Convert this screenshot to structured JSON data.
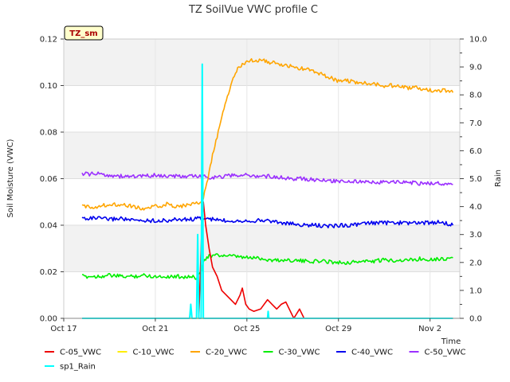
{
  "chart_data": {
    "type": "line",
    "title": "TZ SoilVue VWC profile C",
    "badge": "TZ_sm",
    "xlabel": "Time",
    "ylabel_left": "Soil Moisture (VWC)",
    "ylabel_right": "Rain",
    "xlim": [
      0,
      17.3
    ],
    "x_ticks": [
      {
        "x": 0,
        "label": "Oct 17"
      },
      {
        "x": 4,
        "label": "Oct 21"
      },
      {
        "x": 8,
        "label": "Oct 25"
      },
      {
        "x": 12,
        "label": "Oct 29"
      },
      {
        "x": 16,
        "label": "Nov 2"
      }
    ],
    "ylim_left": [
      0,
      0.12
    ],
    "y_ticks_left": [
      "0.00",
      "0.02",
      "0.04",
      "0.06",
      "0.08",
      "0.10",
      "0.12"
    ],
    "ylim_right": [
      0,
      10
    ],
    "y_ticks_right": [
      "0.0",
      "1.0",
      "2.0",
      "3.0",
      "4.0",
      "5.0",
      "6.0",
      "7.0",
      "8.0",
      "9.0",
      "10.0"
    ],
    "grid": true,
    "legend_position": "bottom",
    "series": [
      {
        "name": "C-05_VWC",
        "color": "#ee0000",
        "axis": "left",
        "points": [
          [
            5.9,
            0.0
          ],
          [
            6.0,
            0.03
          ],
          [
            6.05,
            0.045
          ],
          [
            6.1,
            0.05
          ],
          [
            6.2,
            0.04
          ],
          [
            6.35,
            0.03
          ],
          [
            6.5,
            0.022
          ],
          [
            6.7,
            0.018
          ],
          [
            6.9,
            0.012
          ],
          [
            7.1,
            0.01
          ],
          [
            7.3,
            0.008
          ],
          [
            7.5,
            0.006
          ],
          [
            7.7,
            0.01
          ],
          [
            7.8,
            0.013
          ],
          [
            7.95,
            0.006
          ],
          [
            8.1,
            0.004
          ],
          [
            8.3,
            0.003
          ],
          [
            8.6,
            0.004
          ],
          [
            8.9,
            0.008
          ],
          [
            9.1,
            0.006
          ],
          [
            9.3,
            0.004
          ],
          [
            9.5,
            0.006
          ],
          [
            9.7,
            0.007
          ],
          [
            9.85,
            0.004
          ],
          [
            10.05,
            0.0
          ],
          [
            10.3,
            0.004
          ],
          [
            10.5,
            0.0
          ],
          [
            11.0,
            0.0
          ],
          [
            12.0,
            0.0
          ],
          [
            13.0,
            0.0
          ],
          [
            14.0,
            0.0
          ],
          [
            15.0,
            0.0
          ],
          [
            16.0,
            0.0
          ],
          [
            17.0,
            0.0
          ]
        ]
      },
      {
        "name": "C-10_VWC",
        "color": "#ffee00",
        "axis": "left",
        "points": [
          [
            0.8,
            0.0
          ],
          [
            4.0,
            0.0
          ],
          [
            8.0,
            0.0
          ],
          [
            12.0,
            0.0
          ],
          [
            16.0,
            0.0
          ],
          [
            17.0,
            0.0
          ]
        ]
      },
      {
        "name": "C-20_VWC",
        "color": "#ffa500",
        "axis": "left",
        "points": [
          [
            0.8,
            0.048
          ],
          [
            1.5,
            0.048
          ],
          [
            2.0,
            0.049
          ],
          [
            2.6,
            0.049
          ],
          [
            3.0,
            0.048
          ],
          [
            3.5,
            0.047
          ],
          [
            4.0,
            0.048
          ],
          [
            4.5,
            0.049
          ],
          [
            5.0,
            0.048
          ],
          [
            5.6,
            0.049
          ],
          [
            6.0,
            0.05
          ],
          [
            6.1,
            0.052
          ],
          [
            6.3,
            0.06
          ],
          [
            6.5,
            0.07
          ],
          [
            6.8,
            0.082
          ],
          [
            7.0,
            0.09
          ],
          [
            7.2,
            0.097
          ],
          [
            7.4,
            0.103
          ],
          [
            7.6,
            0.107
          ],
          [
            7.8,
            0.109
          ],
          [
            8.0,
            0.11
          ],
          [
            8.3,
            0.111
          ],
          [
            8.6,
            0.111
          ],
          [
            9.0,
            0.11
          ],
          [
            9.5,
            0.109
          ],
          [
            10.0,
            0.108
          ],
          [
            10.5,
            0.107
          ],
          [
            11.0,
            0.106
          ],
          [
            11.5,
            0.104
          ],
          [
            12.0,
            0.102
          ],
          [
            12.5,
            0.102
          ],
          [
            13.0,
            0.101
          ],
          [
            13.5,
            0.101
          ],
          [
            14.0,
            0.1
          ],
          [
            14.5,
            0.1
          ],
          [
            15.0,
            0.099
          ],
          [
            15.5,
            0.099
          ],
          [
            16.0,
            0.098
          ],
          [
            16.5,
            0.098
          ],
          [
            17.0,
            0.097
          ]
        ]
      },
      {
        "name": "C-30_VWC",
        "color": "#00ee00",
        "axis": "left",
        "points": [
          [
            0.8,
            0.018
          ],
          [
            1.5,
            0.018
          ],
          [
            2.0,
            0.0185
          ],
          [
            2.5,
            0.018
          ],
          [
            3.0,
            0.018
          ],
          [
            3.5,
            0.0185
          ],
          [
            4.0,
            0.018
          ],
          [
            4.5,
            0.018
          ],
          [
            5.0,
            0.018
          ],
          [
            5.5,
            0.0178
          ],
          [
            5.8,
            0.0175
          ],
          [
            6.0,
            0.02
          ],
          [
            6.1,
            0.025
          ],
          [
            6.3,
            0.0265
          ],
          [
            6.6,
            0.027
          ],
          [
            7.0,
            0.027
          ],
          [
            7.5,
            0.0265
          ],
          [
            8.0,
            0.026
          ],
          [
            8.5,
            0.026
          ],
          [
            9.0,
            0.025
          ],
          [
            9.5,
            0.025
          ],
          [
            10.0,
            0.025
          ],
          [
            10.5,
            0.0245
          ],
          [
            11.0,
            0.0245
          ],
          [
            11.5,
            0.0245
          ],
          [
            12.0,
            0.024
          ],
          [
            12.5,
            0.024
          ],
          [
            13.0,
            0.0245
          ],
          [
            13.5,
            0.0245
          ],
          [
            14.0,
            0.025
          ],
          [
            14.5,
            0.025
          ],
          [
            15.0,
            0.025
          ],
          [
            15.5,
            0.0255
          ],
          [
            16.0,
            0.0255
          ],
          [
            16.5,
            0.0255
          ],
          [
            17.0,
            0.026
          ]
        ]
      },
      {
        "name": "C-40_VWC",
        "color": "#0000ee",
        "axis": "left",
        "points": [
          [
            0.8,
            0.043
          ],
          [
            1.5,
            0.043
          ],
          [
            2.0,
            0.0425
          ],
          [
            2.5,
            0.043
          ],
          [
            3.0,
            0.042
          ],
          [
            3.5,
            0.042
          ],
          [
            4.0,
            0.042
          ],
          [
            4.5,
            0.042
          ],
          [
            5.0,
            0.0425
          ],
          [
            5.5,
            0.0425
          ],
          [
            6.0,
            0.043
          ],
          [
            6.5,
            0.0425
          ],
          [
            7.0,
            0.042
          ],
          [
            7.5,
            0.042
          ],
          [
            8.0,
            0.042
          ],
          [
            8.5,
            0.042
          ],
          [
            9.0,
            0.042
          ],
          [
            9.5,
            0.041
          ],
          [
            10.0,
            0.0405
          ],
          [
            10.5,
            0.04
          ],
          [
            11.0,
            0.04
          ],
          [
            11.5,
            0.0395
          ],
          [
            12.0,
            0.04
          ],
          [
            12.5,
            0.04
          ],
          [
            13.0,
            0.0405
          ],
          [
            13.5,
            0.041
          ],
          [
            14.0,
            0.041
          ],
          [
            14.5,
            0.041
          ],
          [
            15.0,
            0.041
          ],
          [
            15.5,
            0.041
          ],
          [
            16.0,
            0.041
          ],
          [
            16.5,
            0.0415
          ],
          [
            17.0,
            0.04
          ]
        ]
      },
      {
        "name": "C-50_VWC",
        "color": "#9b30ff",
        "axis": "left",
        "points": [
          [
            0.8,
            0.062
          ],
          [
            1.5,
            0.062
          ],
          [
            2.0,
            0.0615
          ],
          [
            2.5,
            0.061
          ],
          [
            3.0,
            0.061
          ],
          [
            3.5,
            0.061
          ],
          [
            4.0,
            0.0615
          ],
          [
            4.5,
            0.061
          ],
          [
            5.0,
            0.061
          ],
          [
            5.5,
            0.061
          ],
          [
            6.0,
            0.061
          ],
          [
            6.5,
            0.0605
          ],
          [
            7.0,
            0.061
          ],
          [
            7.5,
            0.0615
          ],
          [
            8.0,
            0.0615
          ],
          [
            8.5,
            0.061
          ],
          [
            9.0,
            0.061
          ],
          [
            9.5,
            0.0605
          ],
          [
            10.0,
            0.06
          ],
          [
            10.5,
            0.06
          ],
          [
            11.0,
            0.0595
          ],
          [
            11.5,
            0.059
          ],
          [
            12.0,
            0.059
          ],
          [
            12.5,
            0.059
          ],
          [
            13.0,
            0.0585
          ],
          [
            13.5,
            0.0585
          ],
          [
            14.0,
            0.0585
          ],
          [
            14.5,
            0.0585
          ],
          [
            15.0,
            0.0585
          ],
          [
            15.5,
            0.058
          ],
          [
            16.0,
            0.058
          ],
          [
            16.5,
            0.058
          ],
          [
            17.0,
            0.0575
          ]
        ]
      },
      {
        "name": "sp1_Rain",
        "color": "#00ffff",
        "axis": "right",
        "points": [
          [
            0.8,
            0.0
          ],
          [
            5.5,
            0.0
          ],
          [
            5.55,
            0.5
          ],
          [
            5.6,
            0.0
          ],
          [
            5.8,
            0.0
          ],
          [
            5.85,
            3.0
          ],
          [
            5.9,
            0.0
          ],
          [
            6.0,
            0.0
          ],
          [
            6.05,
            9.1
          ],
          [
            6.1,
            0.0
          ],
          [
            8.9,
            0.0
          ],
          [
            8.93,
            0.25
          ],
          [
            8.96,
            0.0
          ],
          [
            17.0,
            0.0
          ]
        ]
      }
    ]
  }
}
